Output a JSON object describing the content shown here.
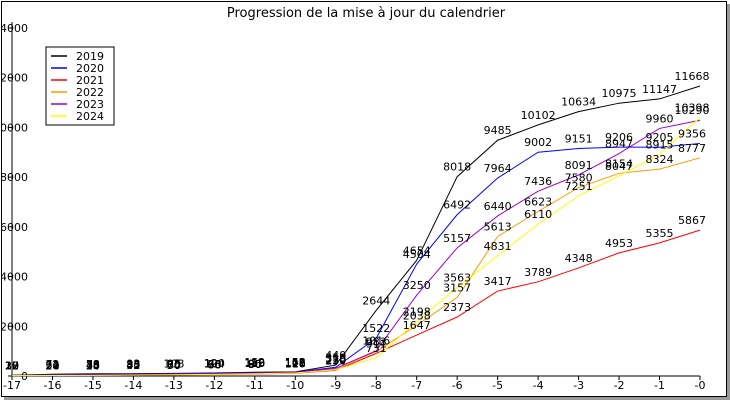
{
  "chart_data": {
    "type": "line",
    "title": "Progression de la mise à jour du calendrier",
    "xlabel": "",
    "ylabel": "",
    "x": [
      -17,
      -16,
      -15,
      -14,
      -13,
      -12,
      -11,
      -10,
      -9,
      -8,
      -7,
      -6,
      -5,
      -4,
      -3,
      -2,
      -1,
      0
    ],
    "x_tick_labels": [
      "-17",
      "-16",
      "-15",
      "-14",
      "-13",
      "-12",
      "-11",
      "-10",
      "-9",
      "-8",
      "-7",
      "-6",
      "-5",
      "-4",
      "-3",
      "-2",
      "-1",
      "-0"
    ],
    "y_ticks": [
      0,
      2000,
      4000,
      6000,
      8000,
      10000,
      12000,
      14000
    ],
    "y_tick_labels": [
      "0",
      "2000",
      "4000",
      "6000",
      "8000",
      "10000",
      "12000",
      "14000"
    ],
    "xlim": [
      -17,
      0
    ],
    "ylim": [
      0,
      14000
    ],
    "grid": false,
    "legend_position": "top-left",
    "series": [
      {
        "name": "2019",
        "color": "#000000",
        "values": [
          30,
          72,
          89,
          93,
          108,
          120,
          152,
          168,
          440,
          2644,
          4654,
          8018,
          9485,
          10102,
          10634,
          10975,
          11147,
          11668
        ]
      },
      {
        "name": "2020",
        "color": "#0000ff",
        "values": [
          23,
          62,
          78,
          83,
          95,
          104,
          130,
          152,
          350,
          1522,
          4504,
          6492,
          7964,
          9002,
          9151,
          9206,
          9205,
          9356
        ]
      },
      {
        "name": "2021",
        "color": "#ff0000",
        "values": [
          18,
          20,
          30,
          40,
          50,
          60,
          80,
          110,
          230,
          911,
          1647,
          2373,
          3417,
          3789,
          4348,
          4953,
          5355,
          5867
        ]
      },
      {
        "name": "2022",
        "color": "#ff9900",
        "values": [
          19,
          24,
          33,
          42,
          60,
          75,
          96,
          128,
          270,
          983,
          2038,
          3157,
          5613,
          6623,
          7580,
          8154,
          8324,
          8777
        ]
      },
      {
        "name": "2023",
        "color": "#9900cc",
        "values": [
          22,
          31,
          43,
          55,
          75,
          90,
          115,
          146,
          310,
          1016,
          3250,
          5157,
          6440,
          7436,
          8091,
          8947,
          9960,
          10290
        ]
      },
      {
        "name": "2024",
        "color": "#ffff00",
        "values": [
          17,
          20,
          24,
          35,
          50,
          66,
          90,
          121,
          250,
          731,
          2198,
          3563,
          4831,
          6110,
          7251,
          8047,
          8915,
          10398
        ]
      }
    ]
  }
}
